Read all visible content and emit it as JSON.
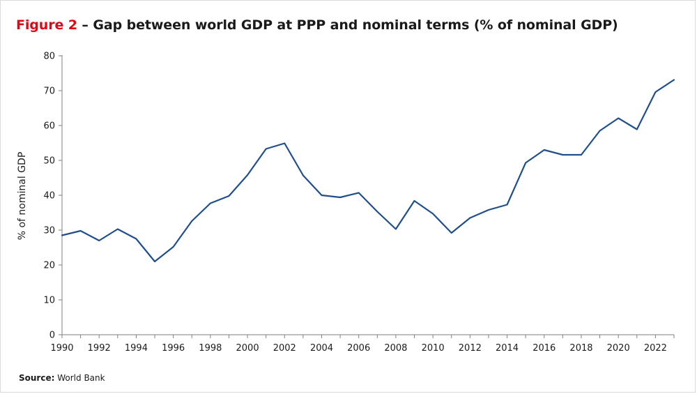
{
  "figure": {
    "number_label": "Figure 2",
    "title_text": " – Gap between world GDP at PPP and nominal terms (% of nominal GDP)",
    "source_label": "Source:",
    "source_value": "World Bank"
  },
  "colors": {
    "line": "#1f4e8c",
    "accent": "#e30613",
    "axis": "#7f7f7f"
  },
  "chart_data": {
    "type": "line",
    "title": "Gap between world GDP at PPP and nominal terms (% of nominal GDP)",
    "xlabel": "",
    "ylabel": "% of nominal GDP",
    "xlim": [
      1990,
      2023
    ],
    "ylim": [
      0,
      80
    ],
    "x_ticks": [
      1990,
      1992,
      1994,
      1996,
      1998,
      2000,
      2002,
      2004,
      2006,
      2008,
      2010,
      2012,
      2014,
      2016,
      2018,
      2020,
      2022
    ],
    "y_ticks": [
      0,
      10,
      20,
      30,
      40,
      50,
      60,
      70,
      80
    ],
    "grid": false,
    "series": [
      {
        "name": "Gap between world GDP at PPP and nominal",
        "x": [
          1990,
          1991,
          1992,
          1993,
          1994,
          1995,
          1996,
          1997,
          1998,
          1999,
          2000,
          2001,
          2002,
          2003,
          2004,
          2005,
          2006,
          2007,
          2008,
          2009,
          2010,
          2011,
          2012,
          2013,
          2014,
          2015,
          2016,
          2017,
          2018,
          2019,
          2020,
          2021,
          2022,
          2023
        ],
        "values": [
          28.5,
          29.8,
          27.0,
          30.3,
          27.5,
          21.0,
          25.2,
          32.6,
          37.7,
          39.8,
          45.8,
          53.3,
          54.9,
          45.7,
          40.0,
          39.4,
          40.7,
          35.3,
          30.3,
          38.4,
          34.7,
          29.2,
          33.5,
          35.8,
          37.3,
          49.3,
          53.0,
          51.6,
          51.6,
          58.5,
          62.1,
          58.9,
          69.6,
          73.1
        ]
      }
    ]
  }
}
